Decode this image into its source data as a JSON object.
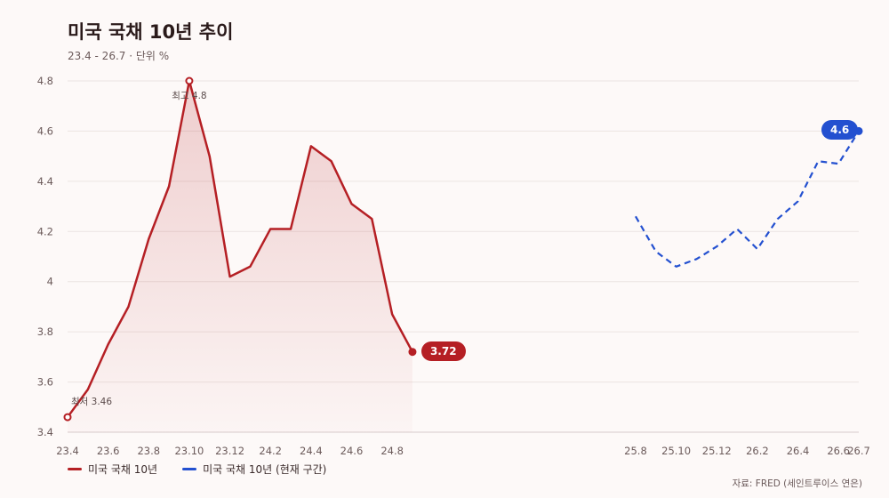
{
  "title": "미국 국채 10년 추이",
  "subtitle": "23.4 - 26.7 · 단위 %",
  "source": "자료: FRED (세인트루이스 연은)",
  "colors": {
    "primary": "#b51f24",
    "secondary": "#2350d0",
    "grid": "#ece4e2",
    "tick": "#6b5a5a"
  },
  "chart_data": {
    "type": "line",
    "title": "미국 국채 10년 추이",
    "xlabel": "",
    "ylabel": "",
    "ylim": [
      3.4,
      4.8
    ],
    "y_ticks": [
      3.4,
      3.6,
      3.8,
      4,
      4.2,
      4.4,
      4.6,
      4.8
    ],
    "x_tick_labels": [
      "23.4",
      "23.6",
      "23.8",
      "23.10",
      "23.12",
      "24.2",
      "24.4",
      "24.6",
      "24.8",
      "25.8",
      "25.10",
      "25.12",
      "26.2",
      "26.4",
      "26.6",
      "26.7"
    ],
    "grid": true,
    "legend_position": "bottom-left",
    "series": [
      {
        "name": "미국 국채 10년",
        "style": "solid",
        "x": [
          "23.4",
          "23.5",
          "23.6",
          "23.7",
          "23.8",
          "23.9",
          "23.10",
          "23.11",
          "23.12",
          "24.1",
          "24.2",
          "24.3",
          "24.4",
          "24.5",
          "24.6",
          "24.7",
          "24.8",
          "24.9"
        ],
        "values": [
          3.46,
          3.57,
          3.75,
          3.9,
          4.17,
          4.38,
          4.8,
          4.5,
          4.02,
          4.06,
          4.21,
          4.21,
          4.54,
          4.48,
          4.31,
          4.25,
          3.87,
          3.72
        ]
      },
      {
        "name": "미국 국채 10년 (현재 구간)",
        "style": "dashed",
        "x": [
          "25.8",
          "25.9",
          "25.10",
          "25.11",
          "25.12",
          "26.1",
          "26.2",
          "26.3",
          "26.4",
          "26.5",
          "26.6",
          "26.7"
        ],
        "values": [
          4.26,
          4.12,
          4.06,
          4.09,
          4.14,
          4.21,
          4.13,
          4.25,
          4.32,
          4.48,
          4.47,
          4.6
        ]
      }
    ],
    "annotations": [
      {
        "label": "최고 4.8",
        "series": 0,
        "index": 6
      },
      {
        "label": "최저 3.46",
        "series": 0,
        "index": 0
      },
      {
        "label": "3.72",
        "series": 0,
        "index": 17
      },
      {
        "label": "4.6",
        "series": 1,
        "index": 11
      }
    ]
  }
}
